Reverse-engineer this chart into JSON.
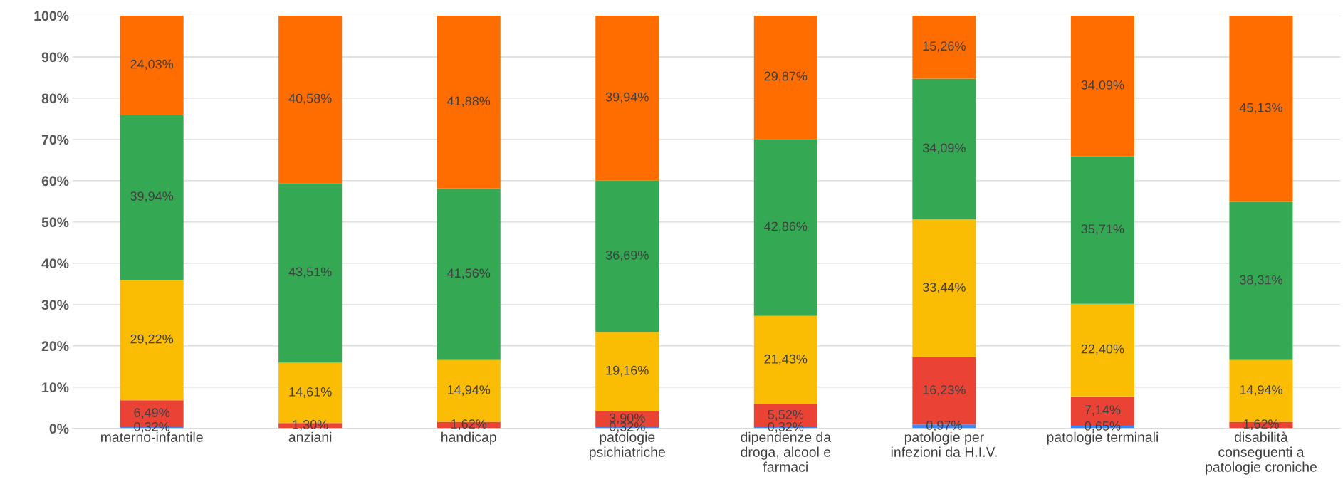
{
  "chart_data": {
    "type": "bar",
    "stacked": true,
    "categories": [
      "materno-infantile",
      "anziani",
      "handicap",
      "patologie\npsichiatriche",
      "dipendenze da\ndroga, alcool e\nfarmaci",
      "patologie per\ninfezioni da H.I.V.",
      "patologie terminali",
      "disabilità\nconseguenti a\npatologie croniche"
    ],
    "series": [
      {
        "color": "#4285f4",
        "values": [
          0.32,
          null,
          null,
          0.32,
          0.32,
          0.97,
          0.65,
          null
        ],
        "value_labels": [
          "0,32%",
          null,
          null,
          "0,32%",
          "0,32%",
          "0,97%",
          "0,65%",
          null
        ]
      },
      {
        "color": "#ea4335",
        "values": [
          6.49,
          1.3,
          1.62,
          3.9,
          5.52,
          16.23,
          7.14,
          1.62
        ],
        "value_labels": [
          "6,49%",
          "1,30%",
          "1,62%",
          "3,90%",
          "5,52%",
          "16,23%",
          "7,14%",
          "1,62%"
        ]
      },
      {
        "color": "#fbbc04",
        "values": [
          29.22,
          14.61,
          14.94,
          19.16,
          21.43,
          33.44,
          22.4,
          14.94
        ],
        "value_labels": [
          "29,22%",
          "14,61%",
          "14,94%",
          "19,16%",
          "21,43%",
          "33,44%",
          "22,40%",
          "14,94%"
        ]
      },
      {
        "color": "#34a853",
        "values": [
          39.94,
          43.51,
          41.56,
          36.69,
          42.86,
          34.09,
          35.71,
          38.31
        ],
        "value_labels": [
          "39,94%",
          "43,51%",
          "41,56%",
          "36,69%",
          "42,86%",
          "34,09%",
          "35,71%",
          "38,31%"
        ]
      },
      {
        "color": "#ff6d01",
        "values": [
          24.03,
          40.58,
          41.88,
          39.94,
          29.87,
          15.26,
          34.09,
          45.13
        ],
        "value_labels": [
          "24,03%",
          "40,58%",
          "41,88%",
          "39,94%",
          "29,87%",
          "15,26%",
          "34,09%",
          "45,13%"
        ]
      }
    ],
    "ylim": [
      0,
      100
    ],
    "yticks": [
      {
        "value": 0,
        "label": "0%"
      },
      {
        "value": 10,
        "label": "10%"
      },
      {
        "value": 20,
        "label": "20%"
      },
      {
        "value": 30,
        "label": "30%"
      },
      {
        "value": 40,
        "label": "40%"
      },
      {
        "value": 50,
        "label": "50%"
      },
      {
        "value": 60,
        "label": "60%"
      },
      {
        "value": 70,
        "label": "70%"
      },
      {
        "value": 80,
        "label": "80%"
      },
      {
        "value": 90,
        "label": "90%"
      },
      {
        "value": 100,
        "label": "100%"
      }
    ],
    "grid": "y"
  }
}
